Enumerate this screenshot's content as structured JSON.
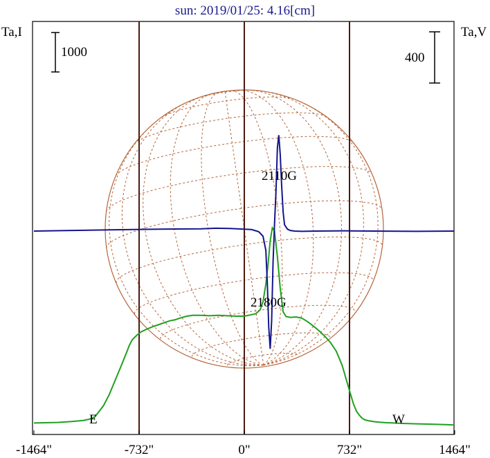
{
  "chart_data": {
    "type": "line",
    "title": "sun: 2019/01/25: 4.16[cm]",
    "ylabel_left": "Ta,I",
    "ylabel_right": "Ta,V",
    "scale_left": "1000",
    "scale_right": "400",
    "xlim": [
      -1464,
      1464
    ],
    "ticks": [
      {
        "value": -1464,
        "label": "-1464\""
      },
      {
        "value": -732,
        "label": "-732\""
      },
      {
        "value": 0,
        "label": "0\""
      },
      {
        "value": 732,
        "label": "732\""
      },
      {
        "value": 1464,
        "label": "1464\""
      }
    ],
    "limb_lines": [
      -732,
      0,
      732
    ],
    "limb_labels": [
      {
        "x": -780,
        "label": "E"
      },
      {
        "x": 820,
        "label": "W"
      }
    ],
    "annotations": [
      {
        "x": 200,
        "label": "2110G"
      },
      {
        "x": 170,
        "label": "2180G"
      }
    ],
    "colors": {
      "intensity": "#1fa01f",
      "polarization": "#14148c",
      "grid": "#b5653a",
      "limb": "#4a1a10",
      "title": "#1a1a8c"
    },
    "series": [
      {
        "values_x": [
          -1464,
          -1300,
          -1200,
          -1120,
          -1080,
          -1060,
          -1040,
          -1020,
          -980,
          -940,
          -900,
          -860,
          -820,
          -800,
          -780,
          -750,
          -720,
          -680,
          -640,
          -600,
          -560,
          -520,
          -480,
          -440,
          -400,
          -360,
          -300,
          -240,
          -180,
          -120,
          -60,
          0,
          40,
          80,
          110,
          130,
          150,
          165,
          180,
          195,
          210,
          230,
          250,
          270,
          290,
          320,
          360,
          400,
          440,
          480,
          520,
          560,
          600,
          640,
          680,
          700,
          720,
          740,
          760,
          780,
          800,
          820,
          840,
          860,
          900,
          940,
          980,
          1040,
          1100,
          1200,
          1300,
          1400,
          1464
        ],
        "values_y": [
          80,
          95,
          120,
          145,
          175,
          200,
          240,
          330,
          520,
          800,
          1150,
          1500,
          1860,
          2050,
          2190,
          2300,
          2390,
          2460,
          2520,
          2570,
          2620,
          2670,
          2700,
          2750,
          2790,
          2810,
          2810,
          2800,
          2810,
          2800,
          2790,
          2790,
          2820,
          2850,
          2950,
          3150,
          3600,
          4100,
          4700,
          5030,
          4950,
          4300,
          3500,
          2900,
          2780,
          2760,
          2770,
          2740,
          2650,
          2540,
          2420,
          2280,
          2120,
          1900,
          1550,
          1300,
          1050,
          800,
          560,
          380,
          280,
          200,
          160,
          140,
          115,
          100,
          90,
          80,
          70,
          60,
          50,
          40,
          30
        ]
      },
      {
        "values_x": [
          -1464,
          -1200,
          -900,
          -600,
          -300,
          -200,
          -100,
          0,
          50,
          100,
          130,
          150,
          160,
          170,
          180,
          190,
          200,
          210,
          220,
          230,
          240,
          250,
          260,
          270,
          280,
          300,
          320,
          350,
          400,
          500,
          700,
          900,
          1200,
          1464
        ],
        "values_y": [
          0,
          5,
          10,
          15,
          18,
          22,
          20,
          15,
          12,
          -5,
          -40,
          -150,
          -400,
          -750,
          -920,
          -700,
          -250,
          50,
          300,
          650,
          750,
          600,
          350,
          150,
          50,
          15,
          5,
          0,
          -2,
          0,
          2,
          0,
          -2,
          0
        ]
      }
    ]
  }
}
